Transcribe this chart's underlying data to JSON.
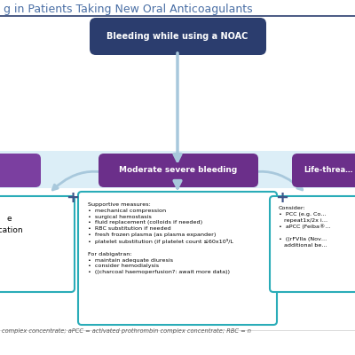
{
  "title": "g in Patients Taking New Oral Anticoagulants",
  "title_color": "#4a6fa5",
  "title_fontsize": 9,
  "top_box_text": "Bleeding while using a NOAC",
  "top_box_color": "#2b3d6e",
  "top_box_text_color": "#ffffff",
  "mid_box_center_text": "Moderate severe bleeding",
  "mid_box_right_text": "Life-threa…",
  "mid_box_color": "#6b2f8a",
  "mid_box_text_color": "#ffffff",
  "arrow_color": "#a8c8dc",
  "border_color": "#2aacb8",
  "center_box_text": "Supportive measures:\n•  mechanical compression\n•  surgical hemostasis\n•  fluid replacement (colloids if needed)\n•  RBC substitution if needed\n•  fresh frozen plasma (as plasma expander)\n•  platelet substitution (if platelet count ≤60x10⁹/L\n\nFor dabigatran:\n•  maintain adequate diuresis\n•  consider hemodialysis\n•  ((charcoal haemoperfusion?: await more data))",
  "right_box_text": "Consider:\n•  PCC (e.g. Co…\n   repeat1x/2x i…\n•  aPCC (Feiba®…\n\n•  ((rFVIIa (Nov…\n   additional be…",
  "left_box_text": "e\nication",
  "plus_color": "#3d5488",
  "footer_text": "complex concentrate; aPCC = activated prothrombin complex concentrate; RBC = n",
  "bg_color": "#ffffff",
  "header_line_color": "#2b3d6e",
  "band_color": "#dceef7",
  "curve_arrow_color": "#a8c8dc",
  "left_mid_box_color": "#7b3fa0"
}
